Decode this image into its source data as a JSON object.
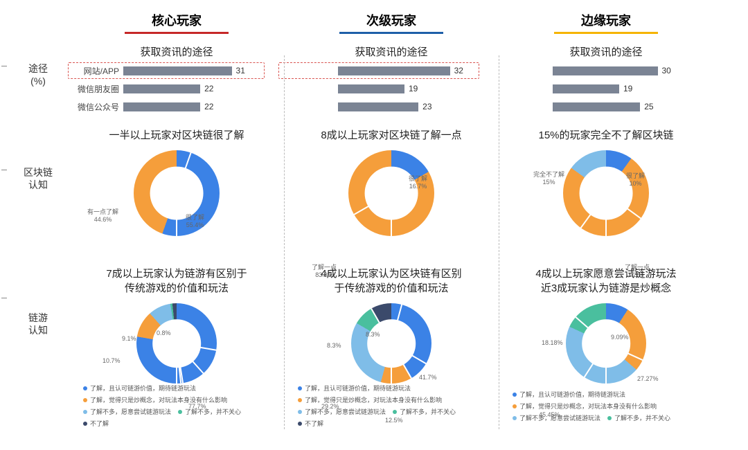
{
  "colors": {
    "blue": "#3b82e6",
    "orange": "#f59e3b",
    "lightblue": "#7fbde8",
    "green": "#4abf9e",
    "navy": "#3b4a6b",
    "bar": "#7b8494",
    "red_underline": "#c62828",
    "blue_underline": "#1e5fa8",
    "yellow_underline": "#f5b400",
    "highlight": "#d9534f"
  },
  "row_labels": {
    "channel": "途径\n(%)",
    "blockchain": "区块链\n认知",
    "chaingame": "链游\n认知"
  },
  "columns": [
    {
      "key": "core",
      "header": "核心玩家",
      "underline": "#c62828",
      "channel": {
        "title": "获取资讯的途径",
        "rows": [
          {
            "label": "网站/APP",
            "value": 31
          },
          {
            "label": "微信朋友圈",
            "value": 22
          },
          {
            "label": "微信公众号",
            "value": 22
          }
        ],
        "max": 40,
        "highlight_row": 0
      },
      "blockchain": {
        "title": "一半以上玩家对区块链很了解",
        "donut_size": 124,
        "hole": 0.62,
        "slices": [
          {
            "label": "很了解",
            "value": 55.4,
            "color": "#3b82e6",
            "lbl_pos": [
              168,
              96
            ]
          },
          {
            "label": "有一点了解",
            "value": 44.6,
            "color": "#f59e3b",
            "lbl_pos": [
              26,
              88
            ]
          }
        ]
      },
      "chaingame": {
        "title": "7成以上玩家认为链游有区别于\n传统游戏的价值和玩法",
        "donut_size": 116,
        "hole": 0.6,
        "slices": [
          {
            "value": 77.7,
            "color": "#3b82e6",
            "lbl_pos": [
              172,
              150
            ]
          },
          {
            "value": 10.7,
            "color": "#f59e3b",
            "lbl_pos": [
              48,
              84
            ]
          },
          {
            "value": 9.1,
            "color": "#7fbde8",
            "lbl_pos": [
              76,
              52
            ]
          },
          {
            "value": 0.8,
            "color": "#4abf9e",
            "lbl_pos": [
              126,
              44
            ]
          },
          {
            "value": 1.7,
            "color": "#3b4a6b",
            "lbl_pos": null
          }
        ],
        "legend": [
          {
            "t": "了解，且认可链游价值，期待链游玩法",
            "c": "#3b82e6"
          },
          {
            "t": "了解，觉得只是炒概念，对玩法本身没有什么影响",
            "c": "#f59e3b"
          },
          {
            "t": "了解不多，愿意尝试链游玩法",
            "c": "#7fbde8"
          },
          {
            "t": "了解不多，并不关心",
            "c": "#4abf9e"
          },
          {
            "t": "不了解",
            "c": "#3b4a6b"
          }
        ]
      }
    },
    {
      "key": "secondary",
      "header": "次级玩家",
      "underline": "#1e5fa8",
      "channel": {
        "title": "获取资讯的途径",
        "rows": [
          {
            "label": "",
            "value": 32
          },
          {
            "label": "",
            "value": 19
          },
          {
            "label": "",
            "value": 23
          }
        ],
        "max": 40,
        "highlight_row": 0
      },
      "blockchain": {
        "title": "8成以上玩家对区块链了解一点",
        "donut_size": 124,
        "hole": 0.62,
        "slices": [
          {
            "label": "很了解",
            "value": 16.7,
            "color": "#3b82e6",
            "lbl_pos": [
              180,
              40
            ]
          },
          {
            "label": "了解一点",
            "value": 83.3,
            "color": "#f59e3b",
            "lbl_pos": [
              40,
              168
            ]
          }
        ]
      },
      "chaingame": {
        "title": "4成以上玩家认为区块链有区别\n于传统游戏的价值和玩法",
        "donut_size": 116,
        "hole": 0.6,
        "slices": [
          {
            "value": 41.7,
            "color": "#3b82e6",
            "lbl_pos": [
              195,
              108
            ]
          },
          {
            "value": 12.5,
            "color": "#f59e3b",
            "lbl_pos": [
              146,
              170
            ]
          },
          {
            "value": 29.2,
            "color": "#7fbde8",
            "lbl_pos": [
              54,
              150
            ]
          },
          {
            "value": 8.3,
            "color": "#4abf9e",
            "lbl_pos": [
              62,
              62
            ]
          },
          {
            "value": 8.3,
            "color": "#3b4a6b",
            "lbl_pos": [
              118,
              46
            ]
          }
        ],
        "legend": [
          {
            "t": "了解，且认可链游价值，期待链游玩法",
            "c": "#3b82e6"
          },
          {
            "t": "了解，觉得只是炒概念，对玩法本身没有什么影响",
            "c": "#f59e3b"
          },
          {
            "t": "了解不多，愿意尝试链游玩法",
            "c": "#7fbde8"
          },
          {
            "t": "了解不多，并不关心",
            "c": "#4abf9e"
          },
          {
            "t": "不了解",
            "c": "#3b4a6b"
          }
        ]
      }
    },
    {
      "key": "edge",
      "header": "边缘玩家",
      "underline": "#f5b400",
      "channel": {
        "title": "获取资讯的途径",
        "rows": [
          {
            "label": "",
            "value": 30
          },
          {
            "label": "",
            "value": 19
          },
          {
            "label": "",
            "value": 25
          }
        ],
        "max": 40
      },
      "blockchain": {
        "title": "15%的玩家完全不了解区块链",
        "donut_size": 124,
        "hole": 0.62,
        "slices": [
          {
            "label": "很了解",
            "value": 10,
            "color": "#3b82e6",
            "lbl_pos": [
              184,
              36
            ]
          },
          {
            "label": "了解一点",
            "value": 75,
            "color": "#f59e3b",
            "lbl_pos": [
              182,
              168
            ]
          },
          {
            "label": "完全不了解",
            "value": 15,
            "color": "#7fbde8",
            "lbl_pos": [
              50,
              34
            ]
          }
        ]
      },
      "chaingame": {
        "title": "4成以上玩家愿意尝试链游玩法\n近3成玩家认为链游是炒概念",
        "donut_size": 116,
        "hole": 0.6,
        "slices": [
          {
            "value": 9.09,
            "color": "#3b82e6",
            "lbl_pos": [
              162,
              50
            ]
          },
          {
            "value": 27.27,
            "color": "#f59e3b",
            "lbl_pos": [
              200,
              110
            ]
          },
          {
            "value": 45.45,
            "color": "#7fbde8",
            "lbl_pos": [
              58,
              162
            ]
          },
          {
            "value": 18.18,
            "color": "#4abf9e",
            "lbl_pos": [
              62,
              58
            ]
          }
        ],
        "legend": [
          {
            "t": "了解，且认可链游价值，期待链游玩法",
            "c": "#3b82e6"
          },
          {
            "t": "了解，觉得只是炒概念，对玩法本身没有什么影响",
            "c": "#f59e3b"
          },
          {
            "t": "了解不多，愿意尝试链游玩法",
            "c": "#7fbde8"
          },
          {
            "t": "了解不多，并不关心",
            "c": "#4abf9e"
          }
        ]
      }
    }
  ]
}
